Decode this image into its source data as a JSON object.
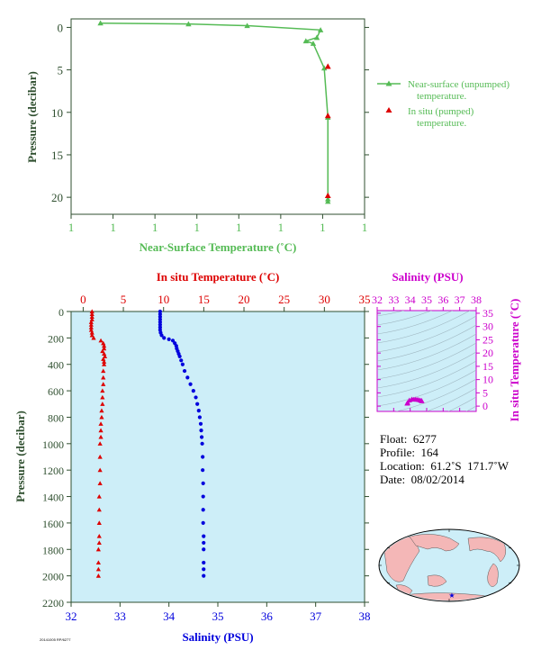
{
  "colors": {
    "near_surface": "#55bb55",
    "in_situ_temp": "#dd0000",
    "salinity": "#0000dd",
    "ts_diagram": "#cc00cc",
    "axis_text": "#2f4f2f",
    "panel_bg": "#cdeef8",
    "ts_bg": "#cdeef8"
  },
  "chart_data": [
    {
      "type": "line",
      "name": "near-surface-profile",
      "xlabel": "Near-Surface Temperature (˚C)",
      "ylabel": "Pressure (decibar)",
      "x_tick_labels": [
        "1",
        "1",
        "1",
        "1",
        "1",
        "1",
        "1",
        "1"
      ],
      "xlim": [
        0.6,
        1.4
      ],
      "y_ticks": [
        0,
        5,
        10,
        15,
        20
      ],
      "ylim": [
        22,
        -1
      ],
      "legend_position": "right",
      "series": [
        {
          "name": "Near-surface (unpumped) temperature.",
          "marker": "triangle",
          "x": [
            0.68,
            0.92,
            1.08,
            1.28,
            1.27,
            1.24,
            1.26,
            1.29,
            1.3,
            1.3,
            1.3
          ],
          "y": [
            -0.5,
            -0.4,
            -0.2,
            0.3,
            1.2,
            1.6,
            1.9,
            4.8,
            10.6,
            20.2,
            20.5
          ]
        },
        {
          "name": "In situ (pumped) temperature.",
          "marker": "triangle",
          "x": [
            1.3,
            1.3,
            1.3
          ],
          "y": [
            4.6,
            10.4,
            19.8
          ]
        }
      ]
    },
    {
      "type": "line",
      "name": "deep-profile",
      "ylabel": "Pressure (decibar)",
      "y_ticks": [
        0,
        200,
        400,
        600,
        800,
        1000,
        1200,
        1400,
        1600,
        1800,
        2000,
        2200
      ],
      "ylim": [
        2200,
        0
      ],
      "top_axis": {
        "label": "In situ Temperature (˚C)",
        "ticks": [
          0,
          5,
          10,
          15,
          20,
          25,
          30,
          35
        ],
        "xlim": [
          -1.5,
          35
        ]
      },
      "bottom_axis": {
        "label": "Salinity (PSU)",
        "ticks": [
          32,
          33,
          34,
          35,
          36,
          37,
          38
        ],
        "xlim": [
          32,
          38
        ]
      },
      "series": [
        {
          "name": "temperature",
          "axis": "top",
          "x": [
            1.1,
            1.1,
            1.1,
            1.1,
            1.0,
            1.0,
            1.0,
            1.0,
            1.1,
            1.1,
            1.3,
            2.2,
            2.5,
            2.6,
            2.6,
            2.4,
            2.6,
            2.7,
            2.5,
            2.6,
            2.6,
            2.5,
            2.5,
            2.5,
            2.4,
            2.4,
            2.4,
            2.3,
            2.3,
            2.2,
            2.2,
            2.2,
            2.1,
            2.1,
            2.1,
            2.1,
            2.0,
            2.0,
            2.0,
            2.0,
            2.0,
            1.9,
            1.9,
            1.9,
            1.9
          ],
          "y": [
            0,
            20,
            40,
            60,
            80,
            100,
            120,
            140,
            160,
            180,
            200,
            220,
            240,
            260,
            280,
            300,
            320,
            340,
            360,
            380,
            400,
            450,
            500,
            550,
            600,
            650,
            700,
            750,
            800,
            850,
            900,
            950,
            1000,
            1100,
            1200,
            1300,
            1400,
            1500,
            1600,
            1700,
            1750,
            1800,
            1900,
            1950,
            2000
          ]
        },
        {
          "name": "salinity",
          "axis": "bottom",
          "x": [
            33.82,
            33.82,
            33.82,
            33.82,
            33.82,
            33.82,
            33.82,
            33.82,
            33.83,
            33.85,
            33.9,
            34.0,
            34.08,
            34.12,
            34.15,
            34.16,
            34.18,
            34.2,
            34.22,
            34.25,
            34.28,
            34.32,
            34.38,
            34.44,
            34.5,
            34.55,
            34.58,
            34.61,
            34.63,
            34.65,
            34.66,
            34.67,
            34.68,
            34.69,
            34.69,
            34.7,
            34.7,
            34.7,
            34.7,
            34.71,
            34.71,
            34.71,
            34.71,
            34.71,
            34.71
          ],
          "y": [
            0,
            20,
            40,
            60,
            80,
            100,
            120,
            140,
            160,
            180,
            200,
            210,
            220,
            240,
            260,
            280,
            300,
            320,
            340,
            370,
            400,
            450,
            500,
            550,
            600,
            650,
            700,
            750,
            800,
            850,
            900,
            950,
            1000,
            1100,
            1200,
            1300,
            1400,
            1500,
            1600,
            1700,
            1750,
            1800,
            1900,
            1950,
            2000
          ]
        }
      ]
    },
    {
      "type": "scatter",
      "name": "ts-diagram",
      "xlabel": "Salinity (PSU)",
      "ylabel": "In situ Temperature (˚C)",
      "x_ticks": [
        32,
        33,
        34,
        35,
        36,
        37,
        38
      ],
      "y_ticks": [
        0,
        5,
        10,
        15,
        20,
        25,
        30,
        35
      ],
      "xlim": [
        32,
        38
      ],
      "ylim": [
        -2,
        36
      ],
      "x": [
        33.82,
        33.82,
        33.85,
        33.95,
        34.1,
        34.2,
        34.3,
        34.4,
        34.5,
        34.6,
        34.68,
        34.71
      ],
      "y": [
        1.1,
        1.0,
        1.3,
        2.2,
        2.6,
        2.5,
        2.6,
        2.5,
        2.4,
        2.2,
        2.1,
        1.9
      ]
    }
  ],
  "info": {
    "float": "Float:  6277",
    "profile": "Profile:  164",
    "location": "Location:  61.2˚S  171.7˚W",
    "date": "Date:  08/02/2014"
  },
  "footer": "20141005 RP/6277"
}
